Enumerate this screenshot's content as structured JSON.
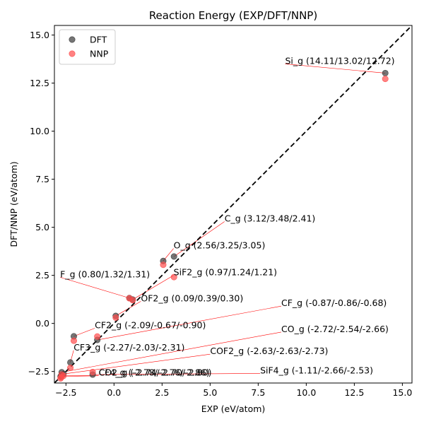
{
  "chart_data": {
    "type": "scatter",
    "title": "Reaction Energy (EXP/DFT/NNP)",
    "xlabel": "EXP (eV/atom)",
    "ylabel": "DFT/NNP (eV/atom)",
    "xlim": [
      -3.1,
      15.5
    ],
    "ylim": [
      -3.1,
      15.5
    ],
    "xticks": [
      -2.5,
      0.0,
      2.5,
      5.0,
      7.5,
      10.0,
      12.5,
      15.0
    ],
    "yticks": [
      -2.5,
      0.0,
      2.5,
      5.0,
      7.5,
      10.0,
      12.5,
      15.0
    ],
    "xtick_labels": [
      "−2.5",
      "0.0",
      "2.5",
      "5.0",
      "7.5",
      "10.0",
      "12.5",
      "15.0"
    ],
    "ytick_labels": [
      "−2.5",
      "0.0",
      "2.5",
      "5.0",
      "7.5",
      "10.0",
      "12.5",
      "15.0"
    ],
    "grid": false,
    "legend_position": "top-left",
    "diagonal": "y = x (black dashed)",
    "series": [
      {
        "name": "DFT",
        "color": "#3a3a3a",
        "points": [
          {
            "x": 14.11,
            "y": 13.02
          },
          {
            "x": 3.12,
            "y": 3.48
          },
          {
            "x": 2.56,
            "y": 3.25
          },
          {
            "x": 0.8,
            "y": 1.32
          },
          {
            "x": 0.97,
            "y": 1.24
          },
          {
            "x": 0.09,
            "y": 0.39
          },
          {
            "x": -0.87,
            "y": -0.86
          },
          {
            "x": -2.09,
            "y": -0.67
          },
          {
            "x": -2.72,
            "y": -2.54
          },
          {
            "x": -2.27,
            "y": -2.03
          },
          {
            "x": -2.63,
            "y": -2.63
          },
          {
            "x": -1.11,
            "y": -2.66
          },
          {
            "x": -2.78,
            "y": -2.76
          },
          {
            "x": -2.74,
            "y": -2.7
          }
        ]
      },
      {
        "name": "NNP",
        "color": "#ff4d4d",
        "points": [
          {
            "x": 14.11,
            "y": 12.72
          },
          {
            "x": 3.12,
            "y": 2.41
          },
          {
            "x": 2.56,
            "y": 3.05
          },
          {
            "x": 0.8,
            "y": 1.31
          },
          {
            "x": 0.97,
            "y": 1.21
          },
          {
            "x": 0.09,
            "y": 0.3
          },
          {
            "x": -0.87,
            "y": -0.68
          },
          {
            "x": -2.09,
            "y": -0.9
          },
          {
            "x": -2.72,
            "y": -2.66
          },
          {
            "x": -2.27,
            "y": -2.31
          },
          {
            "x": -2.63,
            "y": -2.73
          },
          {
            "x": -1.11,
            "y": -2.53
          },
          {
            "x": -2.78,
            "y": -2.86
          },
          {
            "x": -2.74,
            "y": -2.8
          }
        ]
      }
    ],
    "annotations": [
      {
        "text": "Si_g (14.11/13.02/12.72)",
        "x": 14.11,
        "y": 13.02,
        "tx": 8.9,
        "ty": 13.5
      },
      {
        "text": "C_g (3.12/3.48/2.41)",
        "x": 3.12,
        "y": 3.48,
        "tx": 5.75,
        "ty": 5.3
      },
      {
        "text": "O_g (2.56/3.25/3.05)",
        "x": 2.56,
        "y": 3.25,
        "tx": 3.1,
        "ty": 3.9
      },
      {
        "text": "F_g (0.80/1.32/1.31)",
        "x": 0.8,
        "y": 1.32,
        "tx": -2.8,
        "ty": 2.4
      },
      {
        "text": "SiF2_g (0.97/1.24/1.21)",
        "x": 0.97,
        "y": 1.24,
        "tx": 3.1,
        "ty": 2.5
      },
      {
        "text": "OF2_g (0.09/0.39/0.30)",
        "x": 0.09,
        "y": 0.39,
        "tx": 1.4,
        "ty": 1.15
      },
      {
        "text": "CF_g (-0.87/-0.86/-0.68)",
        "x": -0.87,
        "y": -0.86,
        "tx": 8.7,
        "ty": 0.9
      },
      {
        "text": "CF2_g (-2.09/-0.67/-0.90)",
        "x": -2.09,
        "y": -0.67,
        "tx": -1.0,
        "ty": -0.25
      },
      {
        "text": "CO_g (-2.72/-2.54/-2.66)",
        "x": -2.72,
        "y": -2.54,
        "tx": 8.7,
        "ty": -0.45
      },
      {
        "text": "CF3_g (-2.27/-2.03/-2.31)",
        "x": -2.27,
        "y": -2.03,
        "tx": -2.1,
        "ty": -1.4
      },
      {
        "text": "COF2_g (-2.63/-2.63/-2.73)",
        "x": -2.63,
        "y": -2.63,
        "tx": 5.0,
        "ty": -1.6
      },
      {
        "text": "SiF4_g (-1.11/-2.66/-2.53)",
        "x": -1.11,
        "y": -2.66,
        "tx": 7.6,
        "ty": -2.6
      },
      {
        "text": "CF4_g (-2.78/-2.76/-2.86)",
        "x": -2.78,
        "y": -2.76,
        "tx": -0.8,
        "ty": -2.72
      },
      {
        "text": "CO2_g (-2.74/-2.70/-2.80)",
        "x": -2.74,
        "y": -2.7,
        "tx": -0.8,
        "ty": -2.72
      }
    ]
  }
}
